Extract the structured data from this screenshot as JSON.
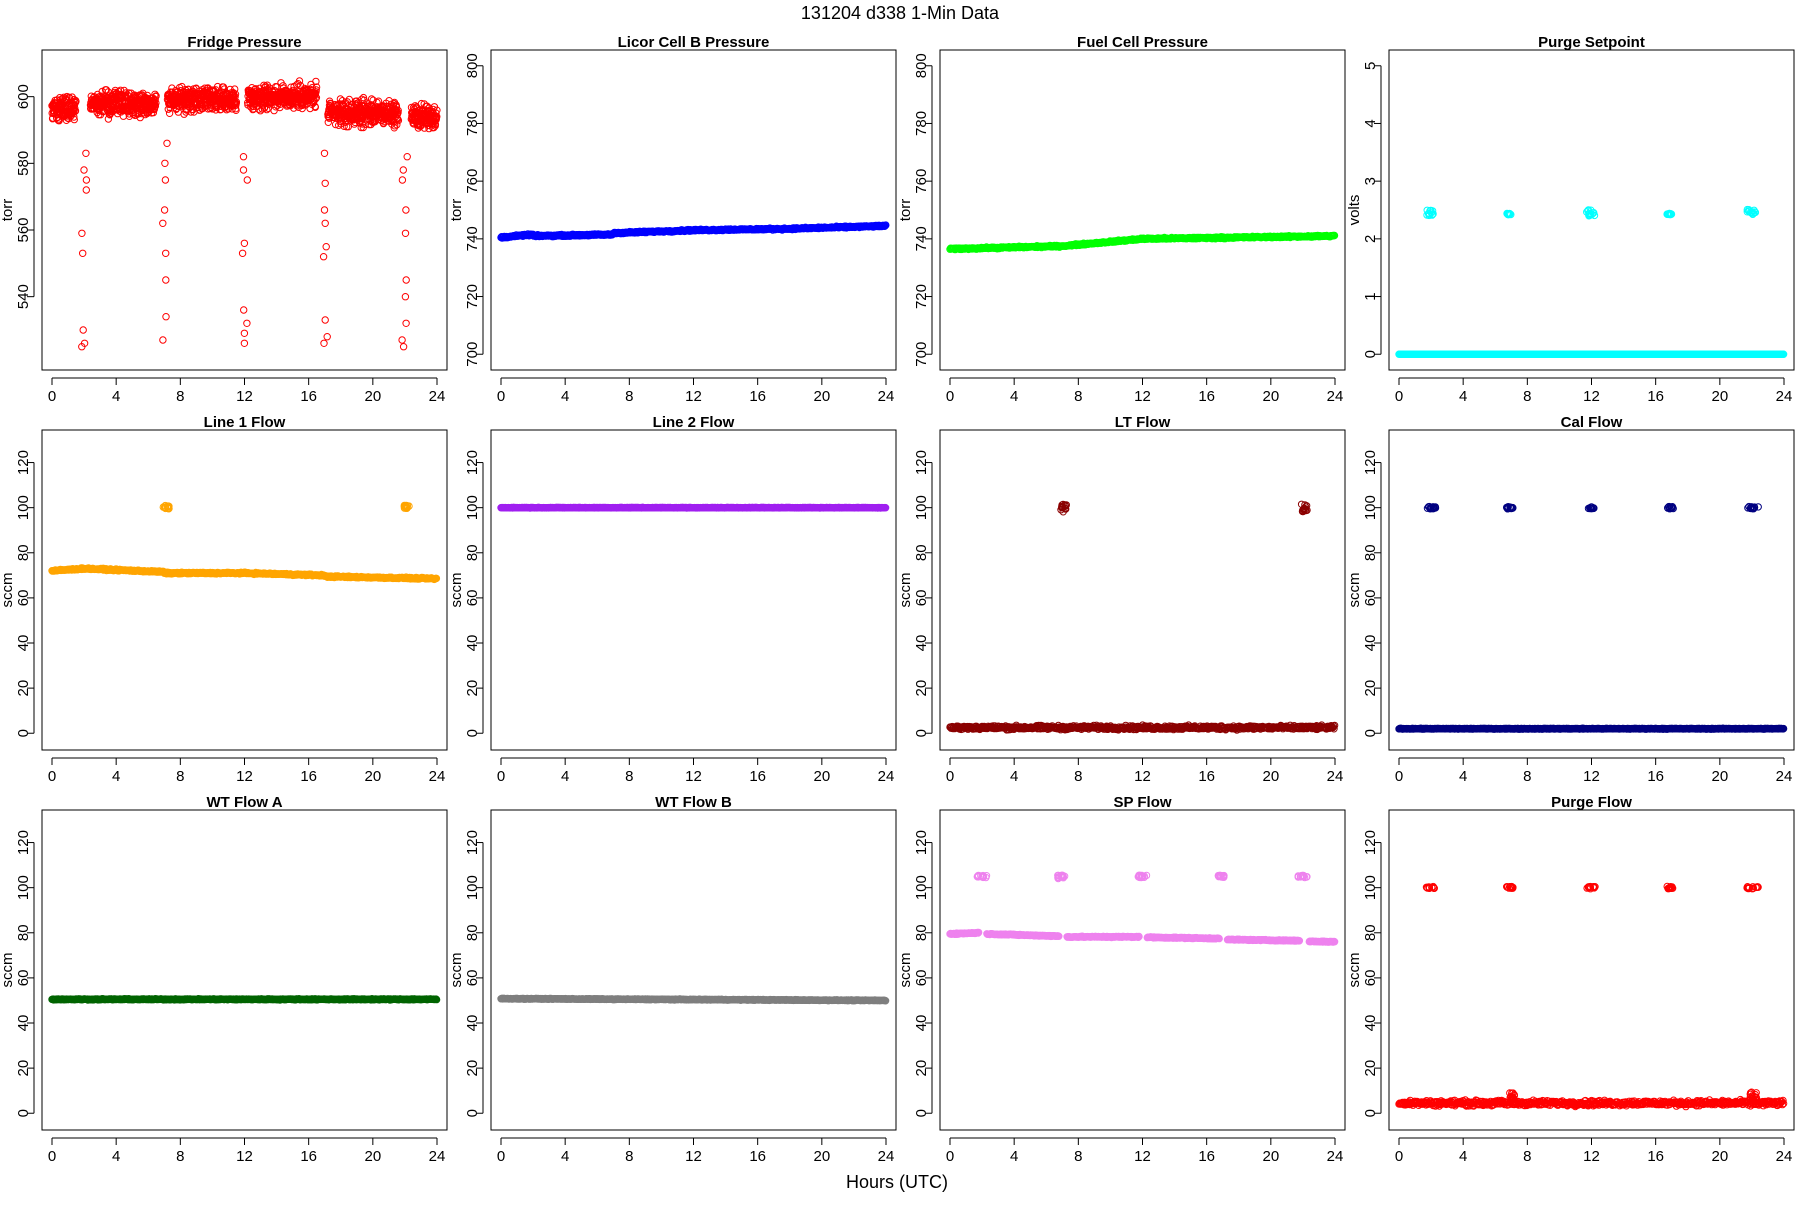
{
  "figure": {
    "title": "131204    d338    1-Min Data",
    "xlabel": "Hours (UTC)"
  },
  "chart_data": [
    {
      "type": "scatter",
      "title": "Fridge Pressure",
      "ylabel": "torr",
      "xlim": [
        0,
        24
      ],
      "ylim": [
        521,
        611
      ],
      "xticks": [
        0,
        4,
        8,
        12,
        16,
        20,
        24
      ],
      "yticks": [
        540,
        560,
        580,
        600
      ],
      "color": "#ff0000",
      "series": [
        {
          "segments": [
            {
              "x": [
                0,
                1.5
              ],
              "y": 596,
              "noise": 6
            },
            {
              "x": [
                2.4,
                6.5
              ],
              "y": 598,
              "noise": 6
            },
            {
              "x": [
                7.2,
                11.5
              ],
              "y": 599,
              "noise": 6
            },
            {
              "x": [
                12.2,
                16.5
              ],
              "y": 600,
              "noise": 6
            },
            {
              "x": [
                17.2,
                21.6
              ],
              "y": 595,
              "noise": 6
            },
            {
              "x": [
                22.4,
                24
              ],
              "y": 594,
              "noise": 6
            }
          ],
          "bursts": [
            {
              "x": 2.0,
              "ys": [
                578,
                575,
                572,
                553,
                530,
                526,
                525,
                559,
                583
              ]
            },
            {
              "x": 7.0,
              "ys": [
                586,
                580,
                575,
                566,
                562,
                553,
                545,
                534,
                527
              ]
            },
            {
              "x": 12.0,
              "ys": [
                582,
                578,
                575,
                556,
                553,
                536,
                532,
                529,
                526
              ]
            },
            {
              "x": 17.0,
              "ys": [
                583,
                574,
                566,
                562,
                555,
                552,
                533,
                528,
                526
              ]
            },
            {
              "x": 22.0,
              "ys": [
                582,
                578,
                575,
                566,
                559,
                545,
                540,
                532,
                527,
                525
              ]
            }
          ]
        }
      ]
    },
    {
      "type": "scatter",
      "title": "Licor Cell B Pressure",
      "ylabel": "torr",
      "xlim": [
        0,
        24
      ],
      "ylim": [
        698,
        802
      ],
      "xticks": [
        0,
        4,
        8,
        12,
        16,
        20,
        24
      ],
      "yticks": [
        700,
        720,
        740,
        760,
        780,
        800
      ],
      "color": "#0000ff",
      "series": [
        {
          "segments": [
            {
              "x": [
                0,
                2
              ],
              "y": [
                740.5,
                741.5
              ],
              "noise": 0.5
            },
            {
              "x": [
                2,
                7
              ],
              "y": [
                741,
                741.5
              ],
              "noise": 0.5
            },
            {
              "x": [
                7,
                12
              ],
              "y": [
                742,
                743
              ],
              "noise": 0.5
            },
            {
              "x": [
                12,
                18
              ],
              "y": [
                743,
                743.5
              ],
              "noise": 0.5
            },
            {
              "x": [
                18,
                24
              ],
              "y": [
                743.5,
                744.5
              ],
              "noise": 0.5
            }
          ]
        }
      ]
    },
    {
      "type": "scatter",
      "title": "Fuel Cell Pressure",
      "ylabel": "torr",
      "xlim": [
        0,
        24
      ],
      "ylim": [
        698,
        802
      ],
      "xticks": [
        0,
        4,
        8,
        12,
        16,
        20,
        24
      ],
      "yticks": [
        700,
        720,
        740,
        760,
        780,
        800
      ],
      "color": "#00ff00",
      "series": [
        {
          "segments": [
            {
              "x": [
                0,
                7
              ],
              "y": [
                736.5,
                737.5
              ],
              "noise": 0.5
            },
            {
              "x": [
                7,
                12
              ],
              "y": [
                737.5,
                740
              ],
              "noise": 0.5
            },
            {
              "x": [
                12,
                24
              ],
              "y": [
                740,
                741
              ],
              "noise": 0.5
            }
          ]
        }
      ]
    },
    {
      "type": "scatter",
      "title": "Purge Setpoint",
      "ylabel": "volts",
      "xlim": [
        0,
        24
      ],
      "ylim": [
        -0.1,
        5.1
      ],
      "xticks": [
        0,
        4,
        8,
        12,
        16,
        20,
        24
      ],
      "yticks": [
        0,
        1,
        2,
        3,
        4,
        5
      ],
      "color": "#00ffff",
      "series": [
        {
          "segments": [
            {
              "x": [
                0,
                24
              ],
              "y": 0,
              "noise": 0
            }
          ],
          "clusters": [
            {
              "x": [
                1.7,
                2.2
              ],
              "y": [
                2.4,
                2.5
              ]
            },
            {
              "x": [
                6.7,
                7.0
              ],
              "y": [
                2.42,
                2.44
              ]
            },
            {
              "x": [
                11.7,
                12.2
              ],
              "y": [
                2.4,
                2.5
              ]
            },
            {
              "x": [
                16.7,
                17.0
              ],
              "y": [
                2.42,
                2.44
              ]
            },
            {
              "x": [
                21.7,
                22.3
              ],
              "y": [
                2.42,
                2.52
              ]
            }
          ]
        }
      ]
    },
    {
      "type": "scatter",
      "title": "Line 1 Flow",
      "ylabel": "sccm",
      "xlim": [
        0,
        24
      ],
      "ylim": [
        -3,
        130
      ],
      "xticks": [
        0,
        4,
        8,
        12,
        16,
        20,
        24
      ],
      "yticks": [
        0,
        20,
        40,
        60,
        80,
        100,
        120
      ],
      "color": "#ffa500",
      "series": [
        {
          "segments": [
            {
              "x": [
                0,
                2
              ],
              "y": [
                72,
                73
              ],
              "noise": 0.6
            },
            {
              "x": [
                2,
                7
              ],
              "y": [
                73,
                71.5
              ],
              "noise": 0.6
            },
            {
              "x": [
                7,
                12
              ],
              "y": [
                71,
                71
              ],
              "noise": 0.6
            },
            {
              "x": [
                12,
                17
              ],
              "y": [
                71,
                70
              ],
              "noise": 0.6
            },
            {
              "x": [
                17,
                24
              ],
              "y": [
                69.5,
                68.5
              ],
              "noise": 0.6
            }
          ],
          "clusters": [
            {
              "x": [
                6.9,
                7.3
              ],
              "y": [
                99.5,
                101
              ]
            },
            {
              "x": [
                21.9,
                22.3
              ],
              "y": [
                99.5,
                101
              ]
            }
          ]
        }
      ]
    },
    {
      "type": "scatter",
      "title": "Line 2 Flow",
      "ylabel": "sccm",
      "xlim": [
        0,
        24
      ],
      "ylim": [
        -3,
        130
      ],
      "xticks": [
        0,
        4,
        8,
        12,
        16,
        20,
        24
      ],
      "yticks": [
        0,
        20,
        40,
        60,
        80,
        100,
        120
      ],
      "color": "#a020f0",
      "series": [
        {
          "segments": [
            {
              "x": [
                0,
                24
              ],
              "y": 100,
              "noise": 0.2
            }
          ]
        }
      ]
    },
    {
      "type": "scatter",
      "title": "LT Flow",
      "ylabel": "sccm",
      "xlim": [
        0,
        24
      ],
      "ylim": [
        -3,
        130
      ],
      "xticks": [
        0,
        4,
        8,
        12,
        16,
        20,
        24
      ],
      "yticks": [
        0,
        20,
        40,
        60,
        80,
        100,
        120
      ],
      "color": "#8b0000",
      "series": [
        {
          "segments": [
            {
              "x": [
                0,
                24
              ],
              "y": 2.5,
              "noise": 1.5
            }
          ],
          "clusters": [
            {
              "x": [
                6.9,
                7.3
              ],
              "y": [
                98,
                101.5
              ]
            },
            {
              "x": [
                21.9,
                22.3
              ],
              "y": [
                98,
                101.5
              ]
            }
          ]
        }
      ]
    },
    {
      "type": "scatter",
      "title": "Cal Flow",
      "ylabel": "sccm",
      "xlim": [
        0,
        24
      ],
      "ylim": [
        -3,
        130
      ],
      "xticks": [
        0,
        4,
        8,
        12,
        16,
        20,
        24
      ],
      "yticks": [
        0,
        20,
        40,
        60,
        80,
        100,
        120
      ],
      "color": "#000080",
      "series": [
        {
          "segments": [
            {
              "x": [
                0,
                24
              ],
              "y": 2,
              "noise": 0.3
            }
          ],
          "clusters": [
            {
              "x": [
                1.7,
                2.3
              ],
              "y": [
                99.5,
                100.5
              ]
            },
            {
              "x": [
                6.7,
                7.1
              ],
              "y": [
                99.5,
                100.5
              ]
            },
            {
              "x": [
                11.7,
                12.3
              ],
              "y": [
                99.5,
                100.5
              ]
            },
            {
              "x": [
                16.7,
                17.1
              ],
              "y": [
                99.5,
                100.5
              ]
            },
            {
              "x": [
                21.7,
                22.4
              ],
              "y": [
                99.5,
                100.5
              ]
            }
          ]
        }
      ]
    },
    {
      "type": "scatter",
      "title": "WT Flow A",
      "ylabel": "sccm",
      "xlim": [
        0,
        24
      ],
      "ylim": [
        -3,
        130
      ],
      "xticks": [
        0,
        4,
        8,
        12,
        16,
        20,
        24
      ],
      "yticks": [
        0,
        20,
        40,
        60,
        80,
        100,
        120
      ],
      "color": "#006400",
      "series": [
        {
          "segments": [
            {
              "x": [
                0,
                24
              ],
              "y": 50.5,
              "noise": 0.4
            }
          ]
        }
      ]
    },
    {
      "type": "scatter",
      "title": "WT Flow B",
      "ylabel": "sccm",
      "xlim": [
        0,
        24
      ],
      "ylim": [
        -3,
        130
      ],
      "xticks": [
        0,
        4,
        8,
        12,
        16,
        20,
        24
      ],
      "yticks": [
        0,
        20,
        40,
        60,
        80,
        100,
        120
      ],
      "color": "#7f7f7f",
      "series": [
        {
          "segments": [
            {
              "x": [
                0,
                24
              ],
              "y": [
                50.8,
                50
              ],
              "noise": 0.3
            }
          ]
        }
      ]
    },
    {
      "type": "scatter",
      "title": "SP Flow",
      "ylabel": "sccm",
      "xlim": [
        0,
        24
      ],
      "ylim": [
        -3,
        130
      ],
      "xticks": [
        0,
        4,
        8,
        12,
        16,
        20,
        24
      ],
      "yticks": [
        0,
        20,
        40,
        60,
        80,
        100,
        120
      ],
      "color": "#ee82ee",
      "series": [
        {
          "segments": [
            {
              "x": [
                0,
                1.8
              ],
              "y": [
                79.5,
                80
              ],
              "noise": 0.4
            },
            {
              "x": [
                2.3,
                6.8
              ],
              "y": [
                79.5,
                78.5
              ],
              "noise": 0.4
            },
            {
              "x": [
                7.3,
                11.8
              ],
              "y": [
                78.2,
                78.2
              ],
              "noise": 0.4
            },
            {
              "x": [
                12.3,
                16.8
              ],
              "y": [
                78,
                77.5
              ],
              "noise": 0.4
            },
            {
              "x": [
                17.3,
                21.8
              ],
              "y": [
                77,
                76.5
              ],
              "noise": 0.4
            },
            {
              "x": [
                22.4,
                24
              ],
              "y": [
                76.2,
                76
              ],
              "noise": 0.4
            }
          ],
          "clusters": [
            {
              "x": [
                1.7,
                2.3
              ],
              "y": [
                104.5,
                105.5
              ]
            },
            {
              "x": [
                6.7,
                7.2
              ],
              "y": [
                104,
                105.5
              ]
            },
            {
              "x": [
                11.7,
                12.3
              ],
              "y": [
                104.5,
                105.5
              ]
            },
            {
              "x": [
                16.7,
                17.1
              ],
              "y": [
                104.5,
                105.5
              ]
            },
            {
              "x": [
                21.7,
                22.4
              ],
              "y": [
                104.5,
                105.5
              ]
            }
          ]
        }
      ]
    },
    {
      "type": "scatter",
      "title": "Purge Flow",
      "ylabel": "sccm",
      "xlim": [
        0,
        24
      ],
      "ylim": [
        -3,
        130
      ],
      "xticks": [
        0,
        4,
        8,
        12,
        16,
        20,
        24
      ],
      "yticks": [
        0,
        20,
        40,
        60,
        80,
        100,
        120
      ],
      "color": "#ff0000",
      "series": [
        {
          "segments": [
            {
              "x": [
                0,
                24
              ],
              "y": 4.5,
              "noise": 2
            }
          ],
          "clusters": [
            {
              "x": [
                1.7,
                2.3
              ],
              "y": [
                99.5,
                100.5
              ]
            },
            {
              "x": [
                6.7,
                7.1
              ],
              "y": [
                99.5,
                100.5
              ]
            },
            {
              "x": [
                11.7,
                12.3
              ],
              "y": [
                99.5,
                100.5
              ]
            },
            {
              "x": [
                16.7,
                17.1
              ],
              "y": [
                99.5,
                100.5
              ]
            },
            {
              "x": [
                21.7,
                22.4
              ],
              "y": [
                99.5,
                100.5
              ]
            },
            {
              "x": [
                6.9,
                7.3
              ],
              "y": [
                6,
                9
              ]
            },
            {
              "x": [
                21.9,
                22.3
              ],
              "y": [
                6,
                10
              ]
            }
          ]
        }
      ]
    }
  ]
}
